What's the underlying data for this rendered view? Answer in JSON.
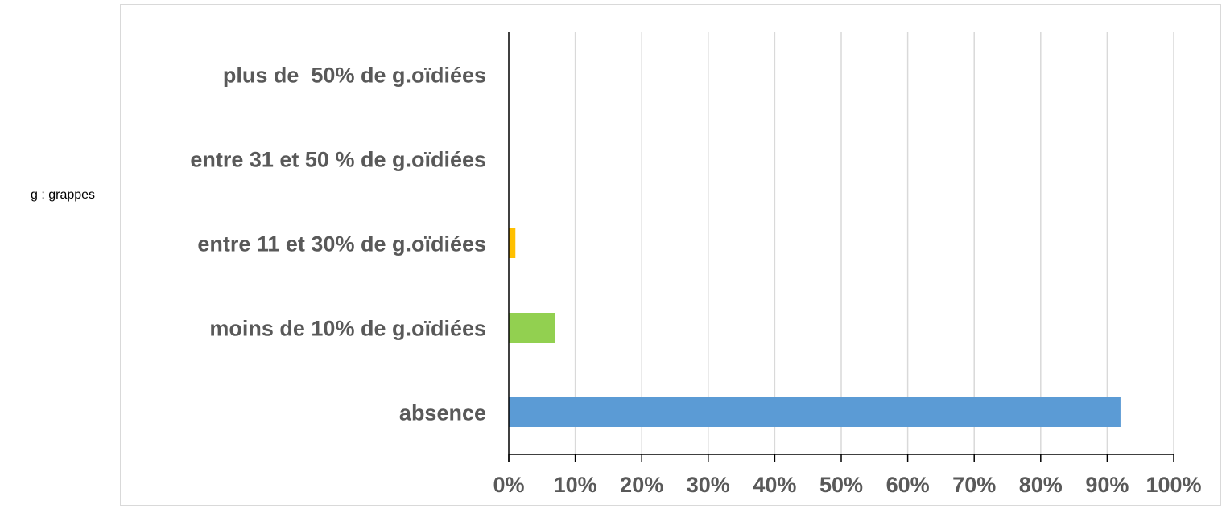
{
  "note": "g : grappes",
  "chart_data": {
    "type": "bar",
    "orientation": "horizontal",
    "categories": [
      "plus de  50% de g.oïdiées",
      "entre 31 et 50 % de g.oïdiées",
      "entre 11 et 30% de g.oïdiées",
      "moins de 10% de g.oïdiées",
      "absence"
    ],
    "values": [
      0,
      0,
      1,
      7,
      92
    ],
    "colors": [
      "#ed7d31",
      "#a5a5a5",
      "#ffc000",
      "#92d050",
      "#5b9bd5"
    ],
    "xlim": [
      0,
      100
    ],
    "ticks": [
      "0%",
      "10%",
      "20%",
      "30%",
      "40%",
      "50%",
      "60%",
      "70%",
      "80%",
      "90%",
      "100%"
    ],
    "grid": true,
    "title": "",
    "xlabel": "",
    "ylabel": ""
  }
}
